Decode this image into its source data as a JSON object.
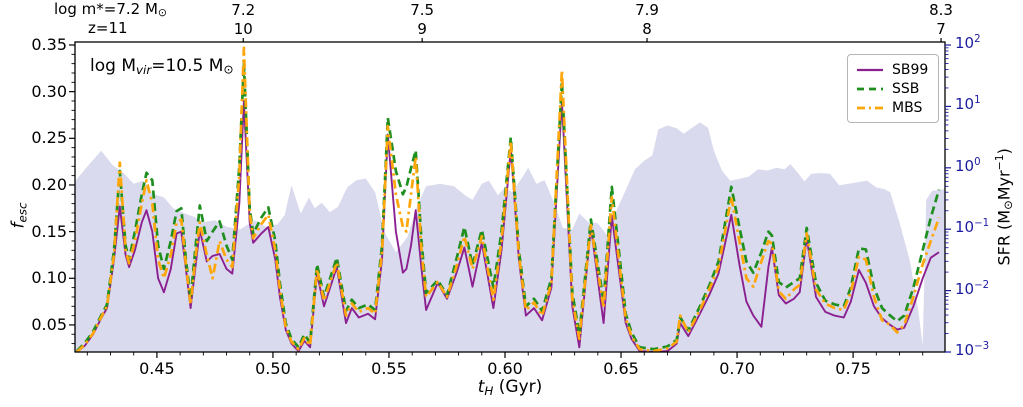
{
  "chart_data": {
    "type": "line",
    "title": "",
    "labels": {
      "xlabel": {
        "base": "t",
        "sub": "H",
        "rest": " (Gyr)"
      },
      "ylabel": {
        "base": "f",
        "sub": "esc"
      },
      "y2label": {
        "p1": "SFR (M",
        "sun": "⊙",
        "p2": "Myr",
        "sup": "−1",
        "p3": ")"
      },
      "annotation": {
        "p1": "log M",
        "sub": "vir",
        "p2": "=10.5 M",
        "sun": "⊙"
      },
      "top_left_mass": {
        "text": "log m*=7.2 M",
        "sun": "⊙"
      },
      "top_left_z": "z=11"
    },
    "legend_position": "upper right",
    "grid": false,
    "xlim": [
      0.4147,
      0.7896
    ],
    "ylim": [
      0.021,
      0.3532
    ],
    "y2lim_log": [
      0.001,
      112
    ],
    "xticks": [
      "0.45",
      "0.50",
      "0.55",
      "0.60",
      "0.65",
      "0.70",
      "0.75"
    ],
    "yticks": [
      "0.05",
      "0.10",
      "0.15",
      "0.20",
      "0.25",
      "0.30",
      "0.35"
    ],
    "y2tick_exponents": [
      2,
      1,
      0,
      -1,
      -2,
      -3
    ],
    "top_axis": {
      "ticks": [
        {
          "t": 0.4872,
          "mass": "7.2",
          "z": "10"
        },
        {
          "t": 0.5643,
          "mass": "7.5",
          "z": "9"
        },
        {
          "t": 0.6612,
          "mass": "7.9",
          "z": "8"
        },
        {
          "t": 0.7879,
          "mass": "8.3",
          "z": "7"
        }
      ]
    },
    "colors": {
      "sb99": "#8b2090",
      "ssb": "#1f8f1f",
      "mbs": "#ffa60a",
      "sfr_fill": "#dadaee",
      "right_axis": "#1c1ca0",
      "spine": "#000000"
    },
    "x": [
      0.4155,
      0.419,
      0.4225,
      0.4255,
      0.4285,
      0.4315,
      0.434,
      0.4365,
      0.438,
      0.4405,
      0.4435,
      0.4455,
      0.448,
      0.4505,
      0.453,
      0.456,
      0.4585,
      0.4605,
      0.4625,
      0.4645,
      0.4665,
      0.4685,
      0.4715,
      0.474,
      0.477,
      0.48,
      0.4825,
      0.4855,
      0.4875,
      0.49,
      0.4915,
      0.495,
      0.498,
      0.501,
      0.503,
      0.5055,
      0.508,
      0.511,
      0.5135,
      0.516,
      0.519,
      0.522,
      0.5275,
      0.5315,
      0.534,
      0.537,
      0.541,
      0.544,
      0.547,
      0.5495,
      0.553,
      0.556,
      0.5575,
      0.5595,
      0.5615,
      0.564,
      0.566,
      0.571,
      0.575,
      0.579,
      0.5825,
      0.586,
      0.59,
      0.595,
      0.5985,
      0.6025,
      0.606,
      0.609,
      0.6125,
      0.616,
      0.62,
      0.6245,
      0.629,
      0.632,
      0.637,
      0.6425,
      0.646,
      0.6495,
      0.652,
      0.6545,
      0.658,
      0.664,
      0.67,
      0.674,
      0.6755,
      0.679,
      0.684,
      0.688,
      0.692,
      0.6975,
      0.701,
      0.704,
      0.707,
      0.7105,
      0.7135,
      0.715,
      0.718,
      0.721,
      0.7245,
      0.727,
      0.73,
      0.734,
      0.738,
      0.742,
      0.746,
      0.749,
      0.7525,
      0.7555,
      0.759,
      0.7625,
      0.766,
      0.769,
      0.772,
      0.776,
      0.78,
      0.7835,
      0.787
    ],
    "series": [
      {
        "name": "SB99",
        "style": "solid",
        "color": "#8b2090",
        "values": [
          0.02,
          0.028,
          0.04,
          0.055,
          0.068,
          0.12,
          0.177,
          0.125,
          0.112,
          0.13,
          0.16,
          0.173,
          0.15,
          0.1,
          0.085,
          0.11,
          0.148,
          0.15,
          0.11,
          0.068,
          0.11,
          0.152,
          0.118,
          0.124,
          0.126,
          0.11,
          0.105,
          0.18,
          0.29,
          0.16,
          0.138,
          0.148,
          0.155,
          0.12,
          0.08,
          0.045,
          0.03,
          0.022,
          0.033,
          0.026,
          0.105,
          0.07,
          0.112,
          0.052,
          0.068,
          0.058,
          0.062,
          0.056,
          0.12,
          0.254,
          0.15,
          0.106,
          0.11,
          0.135,
          0.173,
          0.11,
          0.066,
          0.095,
          0.078,
          0.105,
          0.133,
          0.091,
          0.138,
          0.068,
          0.13,
          0.238,
          0.12,
          0.06,
          0.068,
          0.055,
          0.09,
          0.29,
          0.07,
          0.026,
          0.155,
          0.052,
          0.167,
          0.1,
          0.052,
          0.035,
          0.022,
          0.02,
          0.022,
          0.03,
          0.052,
          0.038,
          0.062,
          0.082,
          0.105,
          0.168,
          0.115,
          0.075,
          0.06,
          0.048,
          0.112,
          0.133,
          0.082,
          0.073,
          0.078,
          0.085,
          0.143,
          0.08,
          0.064,
          0.06,
          0.058,
          0.075,
          0.109,
          0.095,
          0.07,
          0.057,
          0.05,
          0.045,
          0.047,
          0.07,
          0.1,
          0.122,
          0.128
        ]
      },
      {
        "name": "SSB",
        "style": "dashed",
        "color": "#1f8f1f",
        "values": [
          0.022,
          0.031,
          0.043,
          0.058,
          0.072,
          0.13,
          0.215,
          0.135,
          0.12,
          0.15,
          0.19,
          0.213,
          0.205,
          0.135,
          0.11,
          0.14,
          0.172,
          0.175,
          0.12,
          0.078,
          0.13,
          0.178,
          0.14,
          0.15,
          0.161,
          0.135,
          0.12,
          0.22,
          0.33,
          0.175,
          0.148,
          0.165,
          0.176,
          0.14,
          0.095,
          0.052,
          0.035,
          0.026,
          0.04,
          0.031,
          0.115,
          0.08,
          0.122,
          0.065,
          0.077,
          0.068,
          0.072,
          0.066,
          0.135,
          0.272,
          0.215,
          0.19,
          0.198,
          0.218,
          0.237,
          0.14,
          0.084,
          0.098,
          0.082,
          0.12,
          0.155,
          0.114,
          0.152,
          0.09,
          0.15,
          0.251,
          0.13,
          0.07,
          0.078,
          0.065,
          0.1,
          0.31,
          0.085,
          0.04,
          0.163,
          0.075,
          0.198,
          0.12,
          0.062,
          0.042,
          0.026,
          0.024,
          0.027,
          0.034,
          0.058,
          0.044,
          0.07,
          0.092,
          0.118,
          0.198,
          0.155,
          0.118,
          0.106,
          0.128,
          0.15,
          0.146,
          0.096,
          0.09,
          0.096,
          0.1,
          0.154,
          0.095,
          0.076,
          0.072,
          0.07,
          0.09,
          0.132,
          0.131,
          0.09,
          0.068,
          0.06,
          0.054,
          0.06,
          0.09,
          0.13,
          0.165,
          0.195
        ]
      },
      {
        "name": "MBS",
        "style": "dashdot",
        "color": "#ffa60a",
        "values": [
          0.021,
          0.029,
          0.041,
          0.056,
          0.07,
          0.125,
          0.224,
          0.13,
          0.116,
          0.14,
          0.18,
          0.205,
          0.18,
          0.12,
          0.1,
          0.125,
          0.16,
          0.163,
          0.115,
          0.072,
          0.12,
          0.16,
          0.125,
          0.1,
          0.14,
          0.12,
          0.112,
          0.21,
          0.347,
          0.17,
          0.143,
          0.158,
          0.168,
          0.13,
          0.088,
          0.048,
          0.032,
          0.024,
          0.036,
          0.028,
          0.11,
          0.076,
          0.117,
          0.06,
          0.073,
          0.064,
          0.068,
          0.062,
          0.128,
          0.263,
          0.19,
          0.155,
          0.15,
          0.19,
          0.23,
          0.13,
          0.08,
          0.096,
          0.08,
          0.112,
          0.145,
          0.11,
          0.145,
          0.077,
          0.14,
          0.247,
          0.125,
          0.066,
          0.074,
          0.06,
          0.095,
          0.323,
          0.078,
          0.035,
          0.157,
          0.068,
          0.187,
          0.11,
          0.057,
          0.038,
          0.024,
          0.022,
          0.025,
          0.032,
          0.06,
          0.042,
          0.066,
          0.088,
          0.112,
          0.187,
          0.14,
          0.1,
          0.091,
          0.118,
          0.14,
          0.137,
          0.086,
          0.078,
          0.088,
          0.093,
          0.148,
          0.088,
          0.073,
          0.068,
          0.066,
          0.085,
          0.123,
          0.12,
          0.08,
          0.055,
          0.05,
          0.042,
          0.05,
          0.08,
          0.115,
          0.14,
          0.165
        ]
      }
    ],
    "sfr_area": {
      "name": "SFR",
      "x": [
        0.4147,
        0.42,
        0.426,
        0.431,
        0.436,
        0.44,
        0.444,
        0.448,
        0.453,
        0.457,
        0.462,
        0.466,
        0.47,
        0.475,
        0.48,
        0.486,
        0.492,
        0.497,
        0.502,
        0.505,
        0.508,
        0.512,
        0.5155,
        0.518,
        0.521,
        0.5245,
        0.528,
        0.532,
        0.536,
        0.54,
        0.544,
        0.548,
        0.553,
        0.558,
        0.562,
        0.566,
        0.572,
        0.578,
        0.583,
        0.586,
        0.59,
        0.593,
        0.597,
        0.6,
        0.603,
        0.607,
        0.61,
        0.6135,
        0.617,
        0.621,
        0.625,
        0.629,
        0.632,
        0.636,
        0.64,
        0.644,
        0.648,
        0.652,
        0.656,
        0.66,
        0.6635,
        0.666,
        0.67,
        0.674,
        0.677,
        0.681,
        0.684,
        0.6875,
        0.69,
        0.6935,
        0.697,
        0.701,
        0.705,
        0.709,
        0.713,
        0.717,
        0.7205,
        0.723,
        0.726,
        0.729,
        0.732,
        0.736,
        0.74,
        0.744,
        0.748,
        0.752,
        0.756,
        0.76,
        0.7635,
        0.766,
        0.77,
        0.7745,
        0.778,
        0.78,
        0.7815,
        0.784,
        0.7896
      ],
      "values": [
        0.6,
        1.05,
        1.9,
        1.1,
        0.8,
        0.55,
        0.62,
        0.38,
        0.33,
        0.22,
        0.18,
        0.16,
        0.13,
        0.14,
        0.11,
        0.1,
        0.14,
        0.11,
        0.12,
        0.17,
        0.52,
        0.18,
        0.33,
        0.22,
        0.27,
        0.19,
        0.23,
        0.48,
        0.63,
        0.67,
        0.4,
        0.09,
        0.042,
        0.075,
        0.23,
        0.5,
        0.55,
        0.5,
        0.35,
        0.3,
        0.55,
        0.62,
        0.36,
        0.48,
        0.4,
        0.66,
        1.0,
        0.55,
        0.63,
        0.28,
        0.105,
        0.1,
        0.18,
        0.13,
        0.125,
        0.08,
        0.2,
        0.43,
        0.95,
        1.3,
        1.6,
        4.2,
        4.9,
        4.4,
        3.6,
        4.6,
        5.5,
        4.5,
        1.9,
        0.9,
        0.62,
        0.66,
        0.72,
        0.95,
        0.9,
        1.0,
        0.95,
        1.15,
        0.85,
        0.6,
        0.8,
        0.82,
        0.8,
        0.52,
        0.55,
        0.58,
        0.62,
        0.48,
        0.45,
        0.4,
        0.13,
        0.03,
        0.005,
        0.0013,
        0.3,
        0.42,
        0.45
      ]
    }
  }
}
